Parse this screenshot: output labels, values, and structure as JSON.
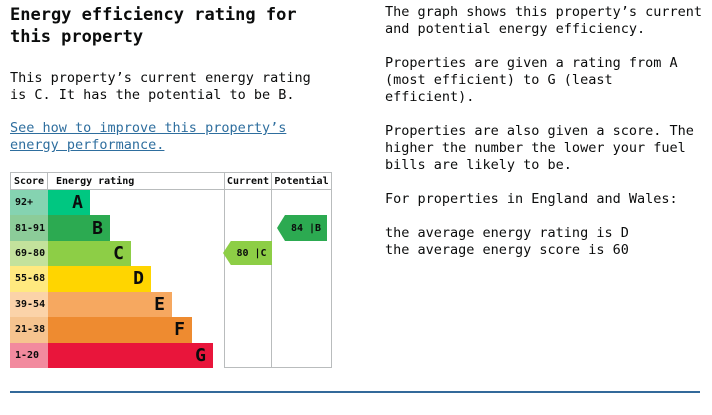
{
  "left": {
    "heading": "Energy efficiency rating for\nthis property",
    "intro": "This property’s current energy rating\nis C. It has the potential to be B.",
    "link_text": "See how to improve this property’s\nenergy performance.",
    "link_color": "#2e6e9e"
  },
  "chart": {
    "headers": {
      "score": "Score",
      "rating": "Energy rating",
      "current": "Current",
      "potential": "Potential"
    },
    "current_label": "80 |C",
    "potential_label": "84 |B",
    "current_marker_color": "#8dce46",
    "potential_marker_color": "#2caa51",
    "border_color": "#b9bcbd"
  },
  "chart_data": {
    "type": "bar",
    "title": "Energy efficiency rating for this property",
    "columns": [
      "Score",
      "Energy rating",
      "Current",
      "Potential"
    ],
    "bands": [
      {
        "band": "A",
        "score_range": "92+",
        "color": "#00c781",
        "tint": "#85d3b1"
      },
      {
        "band": "B",
        "score_range": "81-91",
        "color": "#2caa51",
        "tint": "#8ccc99"
      },
      {
        "band": "C",
        "score_range": "69-80",
        "color": "#8dce46",
        "tint": "#c3e29c"
      },
      {
        "band": "D",
        "score_range": "55-68",
        "color": "#ffd500",
        "tint": "#ffe97f"
      },
      {
        "band": "E",
        "score_range": "39-54",
        "color": "#f6a860",
        "tint": "#fbd3a9"
      },
      {
        "band": "F",
        "score_range": "21-38",
        "color": "#ee8b30",
        "tint": "#f6c48f"
      },
      {
        "band": "G",
        "score_range": "1-20",
        "color": "#e9153b",
        "tint": "#f28a9e"
      }
    ],
    "current": {
      "score": 80,
      "band": "C"
    },
    "potential": {
      "score": 84,
      "band": "B"
    },
    "grid": false,
    "legend_position": "none"
  },
  "right": {
    "paragraphs": [
      "The graph shows this property’s current\nand potential energy efficiency.",
      "Properties are given a rating from A\n(most efficient) to G (least\nefficient).",
      "Properties are also given a score. The\nhigher the number the lower your fuel\nbills are likely to be.",
      "For properties in England and Wales:",
      "the average energy rating is D\nthe average energy score is 60"
    ]
  },
  "divider_color": "#33699a"
}
